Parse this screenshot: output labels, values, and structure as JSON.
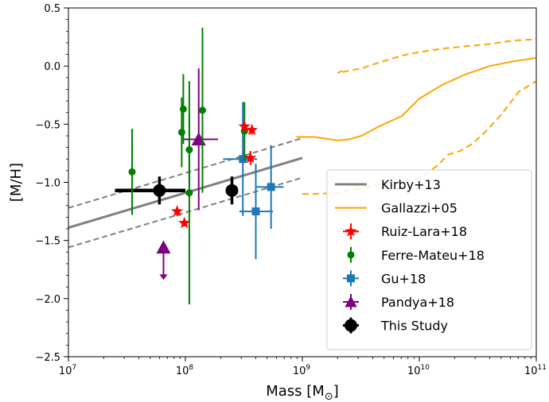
{
  "chart_data": {
    "type": "scatter",
    "xlabel": "Mass [M",
    "xlabel_sub": "⊙",
    "xlabel_end": "]",
    "ylabel": "[M/H]",
    "x_scale": "log",
    "xlim": [
      10000000.0,
      100000000000.0
    ],
    "ylim": [
      -2.5,
      0.5
    ],
    "grid": false,
    "legend_position": "lower-right",
    "x_ticks": [
      {
        "value": 10000000.0,
        "base": "10",
        "exp": "7"
      },
      {
        "value": 100000000.0,
        "base": "10",
        "exp": "8"
      },
      {
        "value": 1000000000.0,
        "base": "10",
        "exp": "9"
      },
      {
        "value": 10000000000.0,
        "base": "10",
        "exp": "10"
      },
      {
        "value": 100000000000.0,
        "base": "10",
        "exp": "11"
      }
    ],
    "y_ticks": [
      {
        "value": 0.5,
        "label": "0.5"
      },
      {
        "value": 0.0,
        "label": "0.0"
      },
      {
        "value": -0.5,
        "label": "−0.5"
      },
      {
        "value": -1.0,
        "label": "−1.0"
      },
      {
        "value": -1.5,
        "label": "−1.5"
      },
      {
        "value": -2.0,
        "label": "−2.0"
      },
      {
        "value": -2.5,
        "label": "−2.5"
      }
    ],
    "series": [
      {
        "name": "Kirby+13",
        "kind": "line",
        "color": "#808080",
        "x": [
          10000000.0,
          1000000000.0
        ],
        "y": [
          -1.39,
          -0.79
        ],
        "band_upper": [
          -1.22,
          -0.62
        ],
        "band_lower": [
          -1.56,
          -0.96
        ]
      },
      {
        "name": "Gallazzi+05",
        "kind": "line",
        "color": "#ffa500",
        "x": [
          890000000.0,
          1260000000.0,
          2000000000.0,
          2500000000.0,
          3200000000.0,
          4500000000.0,
          7100000000.0,
          10000000000.0,
          15800000000.0,
          25000000000.0,
          39800000000.0,
          63000000000.0,
          100000000000.0
        ],
        "y": [
          -0.61,
          -0.61,
          -0.64,
          -0.63,
          -0.6,
          -0.52,
          -0.43,
          -0.28,
          -0.16,
          -0.07,
          0.0,
          0.04,
          0.07
        ],
        "upper": {
          "x": [
            2200000000.0,
            2000000000.0,
            2500000000.0,
            3200000000.0,
            4500000000.0,
            7100000000.0,
            10000000000.0,
            15800000000.0,
            25000000000.0,
            39800000000.0,
            63000000000.0,
            100000000000.0
          ],
          "y": [
            -0.04,
            -0.06,
            -0.04,
            -0.02,
            0.03,
            0.09,
            0.12,
            0.15,
            0.17,
            0.19,
            0.22,
            0.23
          ]
        },
        "lower": {
          "x": [
            1000000000.0,
            1260000000.0,
            2000000000.0,
            3200000000.0,
            4500000000.0,
            7100000000.0,
            10000000000.0,
            14100000000.0,
            17800000000.0,
            22400000000.0,
            28200000000.0,
            35500000000.0,
            50000000000.0,
            71000000000.0,
            100000000000.0
          ],
          "y": [
            -1.1,
            -1.1,
            -1.09,
            -1.05,
            -1.02,
            -1.0,
            -0.97,
            -0.86,
            -0.76,
            -0.73,
            -0.67,
            -0.58,
            -0.42,
            -0.22,
            -0.13
          ]
        }
      },
      {
        "name": "Ruiz-Lara+18",
        "kind": "points",
        "marker": "star",
        "color": "#ff0000",
        "points": [
          {
            "x": 320000000.0,
            "y": -0.52,
            "yerr": 0.04
          },
          {
            "x": 370000000.0,
            "y": -0.55,
            "yerr": 0.04
          },
          {
            "x": 360000000.0,
            "y": -0.79,
            "yerr": 0.06
          },
          {
            "x": 85000000.0,
            "y": -1.25,
            "yerr": 0.04
          },
          {
            "x": 98000000.0,
            "y": -1.35,
            "yerr": 0.03
          }
        ]
      },
      {
        "name": "Ferre-Mateu+18",
        "kind": "points",
        "marker": "circle",
        "color": "#008000",
        "points": [
          {
            "x": 35000000.0,
            "y": -0.91,
            "yerr": 0.37
          },
          {
            "x": 93000000.0,
            "y": -0.57,
            "yerr": 0.3
          },
          {
            "x": 96000000.0,
            "y": -0.37,
            "yerr": 0.3
          },
          {
            "x": 108000000.0,
            "y": -0.72,
            "yerr": 0.3
          },
          {
            "x": 108000000.0,
            "y": -1.09,
            "yerr": 0.96
          },
          {
            "x": 140000000.0,
            "y": -0.38,
            "yerr": 0.71
          },
          {
            "x": 320000000.0,
            "y": -0.56,
            "yerr": 0.25
          }
        ]
      },
      {
        "name": "Gu+18",
        "kind": "points",
        "marker": "square",
        "color": "#1f77b4",
        "points": [
          {
            "x": 310000000.0,
            "y": -0.8,
            "yerr": 0.49,
            "xlo": 210000000.0,
            "xhi": 410000000.0
          },
          {
            "x": 400000000.0,
            "y": -1.25,
            "yerr": 0.41,
            "xlo": 290000000.0,
            "xhi": 560000000.0
          },
          {
            "x": 540000000.0,
            "y": -1.04,
            "yerr": 0.36,
            "xlo": 400000000.0,
            "xhi": 690000000.0
          }
        ]
      },
      {
        "name": "Pandya+18",
        "kind": "points",
        "marker": "triangle",
        "color": "#800080",
        "points": [
          {
            "x": 130000000.0,
            "y": -0.63,
            "yerr": 0.61,
            "xlo": 95000000.0,
            "xhi": 190000000.0
          },
          {
            "x": 65000000.0,
            "y": -1.56,
            "upper_limit": true,
            "arrow_to": -1.84
          }
        ]
      },
      {
        "name": "This Study",
        "kind": "points",
        "marker": "big-circle",
        "color": "#000000",
        "points": [
          {
            "x": 60000000.0,
            "y": -1.07,
            "yerr": 0.12,
            "xlo": 25000000.0,
            "xhi": 100000000.0
          },
          {
            "x": 250000000.0,
            "y": -1.07,
            "yerr": 0.12,
            "xlo": 230000000.0,
            "xhi": 280000000.0
          }
        ]
      }
    ]
  }
}
